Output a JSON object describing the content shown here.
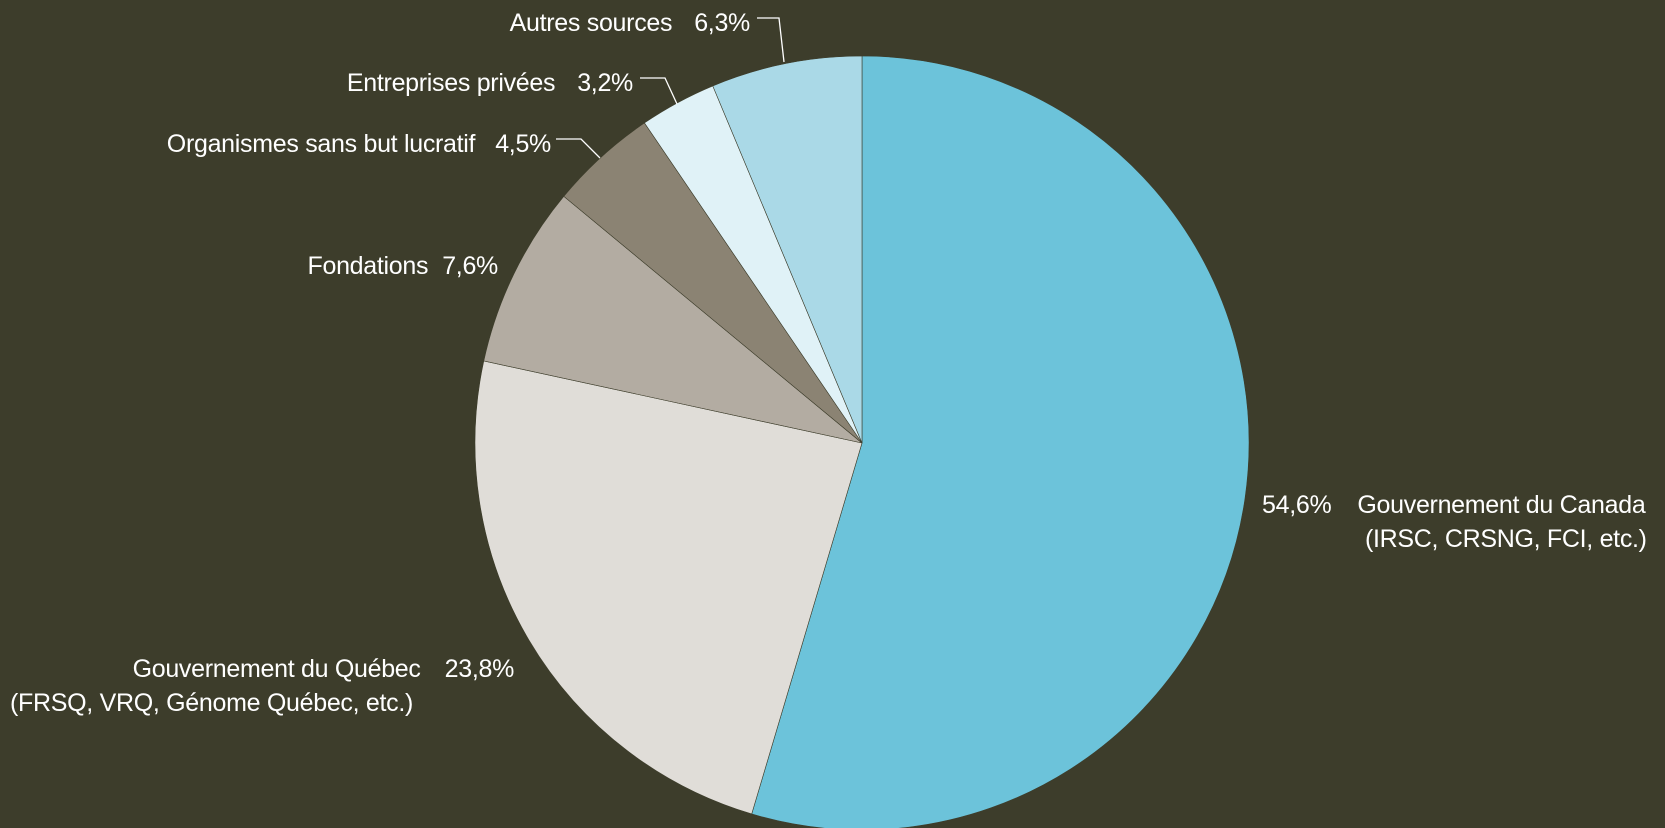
{
  "chart_data": {
    "type": "pie",
    "slices": [
      {
        "label": "Gouvernement du Canada",
        "label_line2": "(IRSC, CRSNG, FCI, etc.)",
        "value": 54.6,
        "display": "54,6%",
        "color": "#6cc3da"
      },
      {
        "label": "Gouvernement du Québec",
        "label_line2": "(FRSQ, VRQ, Génome Québec, etc.)",
        "value": 23.8,
        "display": "23,8%",
        "color": "#e0ddd8"
      },
      {
        "label": "Fondations",
        "value": 7.6,
        "display": "7,6%",
        "color": "#b3aca2"
      },
      {
        "label": "Organismes sans but lucratif",
        "value": 4.5,
        "display": "4,5%",
        "color": "#8b8373"
      },
      {
        "label": "Entreprises privées",
        "value": 3.2,
        "display": "3,2%",
        "color": "#e0f2f7"
      },
      {
        "label": "Autres sources",
        "value": 6.3,
        "display": "6,3%",
        "color": "#aad9e7"
      }
    ],
    "start_angle": "top",
    "direction": "clockwise"
  }
}
